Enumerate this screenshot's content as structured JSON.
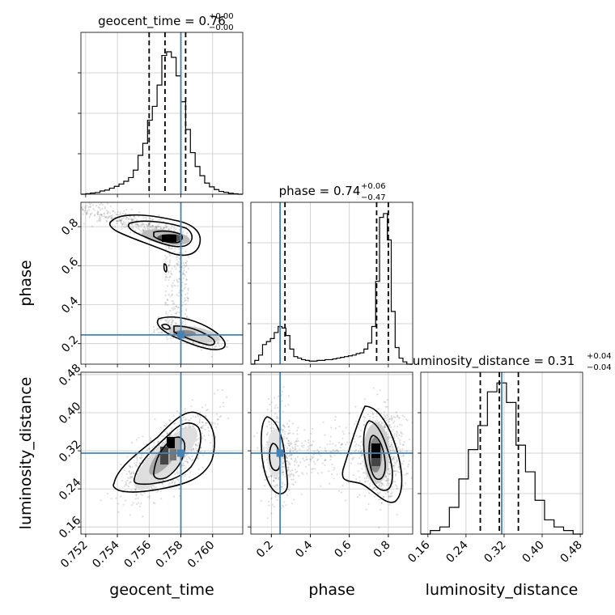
{
  "chart_data": {
    "type": "corner",
    "parameters": [
      {
        "name": "geocent_time",
        "median": 0.757,
        "lower": 0.756,
        "upper": 0.7583,
        "truth": 0.758,
        "range": [
          0.7517,
          0.7619
        ],
        "ticks": [
          0.752,
          0.754,
          0.756,
          0.758,
          0.76
        ],
        "tick_labels": [
          "0.752",
          "0.754",
          "0.756",
          "0.758",
          "0.760"
        ],
        "title_main": "geocent_time = 0.76",
        "title_sup": "+0.00",
        "title_sub": "−0.00",
        "xlabel": "geocent_time",
        "hist_edges": [
          0.7517,
          0.752,
          0.7523,
          0.7526,
          0.7529,
          0.7532,
          0.7535,
          0.7538,
          0.7541,
          0.7544,
          0.7547,
          0.755,
          0.7553,
          0.7556,
          0.7559,
          0.7562,
          0.7565,
          0.7568,
          0.7571,
          0.7574,
          0.7577,
          0.758,
          0.7583,
          0.7586,
          0.7589,
          0.7592,
          0.7595,
          0.7598,
          0.7601,
          0.7604,
          0.7607,
          0.761,
          0.7613,
          0.7616,
          0.7619
        ],
        "hist_values": [
          0,
          0.6,
          1.2,
          1.8,
          3.5,
          4.5,
          6.5,
          8.5,
          11,
          14,
          18,
          26,
          42,
          55,
          80,
          95,
          118,
          150,
          154,
          148,
          128,
          100,
          70,
          45,
          30,
          20,
          12,
          8,
          5,
          3,
          2,
          1,
          0.5,
          0
        ],
        "hist_max": 175
      },
      {
        "name": "phase",
        "median": 0.74,
        "lower": 0.27,
        "upper": 0.8,
        "truth": 0.245,
        "range": [
          0.095,
          0.925
        ],
        "ticks": [
          0.2,
          0.4,
          0.6,
          0.8
        ],
        "tick_labels": [
          "0.2",
          "0.4",
          "0.6",
          "0.8"
        ],
        "title_main": "phase = 0.74",
        "title_sup": "+0.06",
        "title_sub": "−0.47",
        "xlabel": "phase",
        "hist_edges": [
          0.095,
          0.115,
          0.135,
          0.155,
          0.175,
          0.195,
          0.215,
          0.235,
          0.255,
          0.275,
          0.295,
          0.315,
          0.335,
          0.355,
          0.375,
          0.395,
          0.415,
          0.435,
          0.455,
          0.475,
          0.495,
          0.515,
          0.535,
          0.555,
          0.575,
          0.595,
          0.615,
          0.635,
          0.655,
          0.675,
          0.695,
          0.715,
          0.735,
          0.755,
          0.775,
          0.795,
          0.815,
          0.835,
          0.855,
          0.875,
          0.895,
          0.925
        ],
        "hist_values": [
          0,
          5,
          12,
          26,
          30,
          34,
          42,
          50,
          48,
          38,
          20,
          10,
          8,
          6,
          5,
          4,
          4,
          5,
          5,
          6,
          6,
          7,
          8,
          9,
          10,
          11,
          12,
          14,
          15,
          20,
          28,
          50,
          110,
          195,
          200,
          165,
          70,
          22,
          8,
          3,
          0
        ],
        "hist_max": 215
      },
      {
        "name": "luminosity_distance",
        "median": 0.31,
        "lower": 0.27,
        "upper": 0.35,
        "truth": 0.315,
        "range": [
          0.145,
          0.485
        ],
        "ticks": [
          0.16,
          0.24,
          0.32,
          0.4,
          0.48
        ],
        "tick_labels": [
          "0.16",
          "0.24",
          "0.32",
          "0.40",
          "0.48"
        ],
        "title_main": "luminosity_distance = 0.31",
        "title_sup": "+0.04",
        "title_sub": "−0.04",
        "xlabel": "luminosity_distance",
        "hist_edges": [
          0.145,
          0.165,
          0.185,
          0.205,
          0.225,
          0.245,
          0.265,
          0.285,
          0.305,
          0.325,
          0.345,
          0.365,
          0.385,
          0.405,
          0.425,
          0.445,
          0.465,
          0.485
        ],
        "hist_values": [
          0,
          4,
          8,
          30,
          62,
          95,
          122,
          160,
          170,
          148,
          100,
          70,
          38,
          16,
          8,
          4,
          0
        ],
        "hist_max": 182
      }
    ],
    "panel_pairs": [
      {
        "x": "geocent_time",
        "y": "phase"
      },
      {
        "x": "geocent_time",
        "y": "luminosity_distance"
      },
      {
        "x": "phase",
        "y": "luminosity_distance"
      }
    ],
    "quantile_lines": "dashed black",
    "truth_color": "#4682b4",
    "grid": true
  }
}
